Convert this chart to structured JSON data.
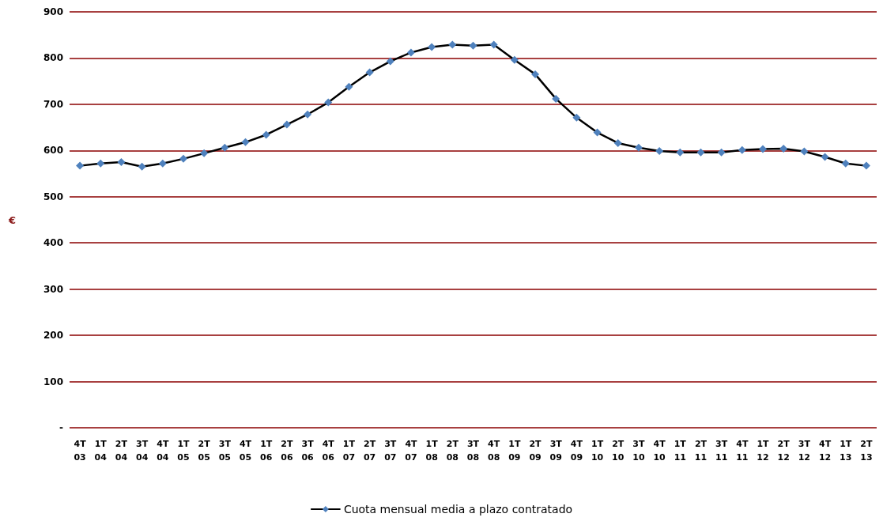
{
  "chart_data": {
    "type": "line",
    "ylabel": "€",
    "categories": [
      "4T 03",
      "1T 04",
      "2T 04",
      "3T 04",
      "4T 04",
      "1T 05",
      "2T 05",
      "3T 05",
      "4T 05",
      "1T 06",
      "2T 06",
      "3T 06",
      "4T 06",
      "1T 07",
      "2T 07",
      "3T 07",
      "4T 07",
      "1T 08",
      "2T 08",
      "3T 08",
      "4T 08",
      "1T 09",
      "2T 09",
      "3T 09",
      "4T 09",
      "1T 10",
      "2T 10",
      "3T 10",
      "4T 10",
      "1T 11",
      "2T 11",
      "3T 11",
      "4T 11",
      "1T 12",
      "2T 12",
      "3T 12",
      "4T 12",
      "1T 13",
      "2T 13"
    ],
    "series": [
      {
        "name": "Cuota mensual media a plazo contratado",
        "color": "#4f81bd",
        "values": [
          567,
          572,
          575,
          565,
          572,
          582,
          594,
          606,
          618,
          634,
          656,
          678,
          704,
          738,
          769,
          793,
          812,
          824,
          829,
          827,
          829,
          796,
          765,
          712,
          671,
          639,
          616,
          606,
          599,
          596,
          596,
          596,
          601,
          603,
          604,
          598,
          586,
          572,
          567
        ]
      }
    ],
    "ylim": [
      0,
      900
    ],
    "yticks": [
      {
        "value": 0,
        "label": "-"
      },
      100,
      200,
      300,
      400,
      500,
      600,
      700,
      800,
      900
    ],
    "grid": "y",
    "legend": "bottom",
    "marker": "diamond",
    "line_style": "solid"
  }
}
